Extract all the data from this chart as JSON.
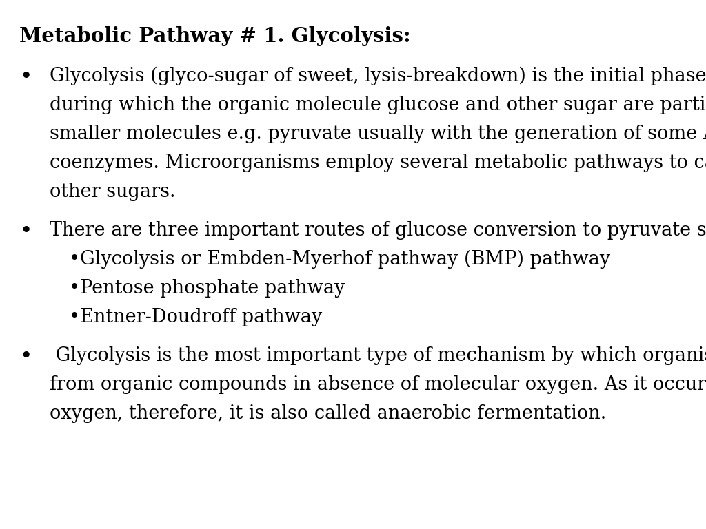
{
  "title": "Metabolic Pathway # 1. Glycolysis:",
  "background_color": "#ffffff",
  "text_color": "#000000",
  "title_fontsize": 21,
  "body_fontsize": 19.5,
  "bullet1_lines": [
    "Glycolysis (glyco-sugar of sweet, lysis-breakdown) is the initial phase of metabolism",
    "during which the organic molecule glucose and other sugar are partially oxidized to",
    "smaller molecules e.g. pyruvate usually with the generation of some ATP and reduced",
    "coenzymes. Microorganisms employ several metabolic pathways to catabolize glucose and",
    "other sugars."
  ],
  "bullet2_lines": [
    "There are three important routes of glucose conversion to pyruvate such as"
  ],
  "sub_bullets": [
    "•Glycolysis or Embden-Myerhof pathway (BMP) pathway",
    "•Pentose phosphate pathway",
    "•Entner-Doudroff pathway"
  ],
  "bullet3_lines": [
    " Glycolysis is the most important type of mechanism by which organisms obtain energy",
    "from organic compounds in absence of molecular oxygen. As it occurs in the absence of",
    "oxygen, therefore, it is also called anaerobic fermentation."
  ]
}
